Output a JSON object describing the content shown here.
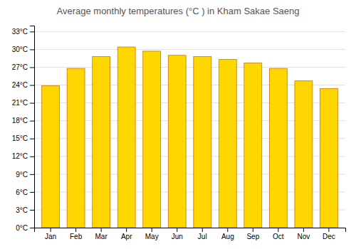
{
  "chart_data": {
    "type": "bar",
    "title": "Average monthly temperatures (°C ) in Kham Sakae Saeng",
    "categories": [
      "Jan",
      "Feb",
      "Mar",
      "Apr",
      "May",
      "Jun",
      "Jul",
      "Aug",
      "Sep",
      "Oct",
      "Nov",
      "Dec"
    ],
    "values": [
      23.9,
      26.8,
      28.8,
      30.4,
      29.7,
      29.0,
      28.8,
      28.3,
      27.7,
      26.8,
      24.7,
      23.4
    ],
    "color": "#FFD700",
    "ylim": [
      0,
      34
    ],
    "yticks": [
      {
        "value": 0,
        "label": "0°C"
      },
      {
        "value": 3,
        "label": "3°C"
      },
      {
        "value": 6,
        "label": "6°C"
      },
      {
        "value": 9,
        "label": "9°C"
      },
      {
        "value": 12,
        "label": "12°C"
      },
      {
        "value": 15,
        "label": "15°C"
      },
      {
        "value": 18,
        "label": "18°C"
      },
      {
        "value": 21,
        "label": "21°C"
      },
      {
        "value": 24,
        "label": "24°C"
      },
      {
        "value": 27,
        "label": "27°C"
      },
      {
        "value": 30,
        "label": "30°C"
      },
      {
        "value": 33,
        "label": "33°C"
      }
    ],
    "grid": true
  }
}
